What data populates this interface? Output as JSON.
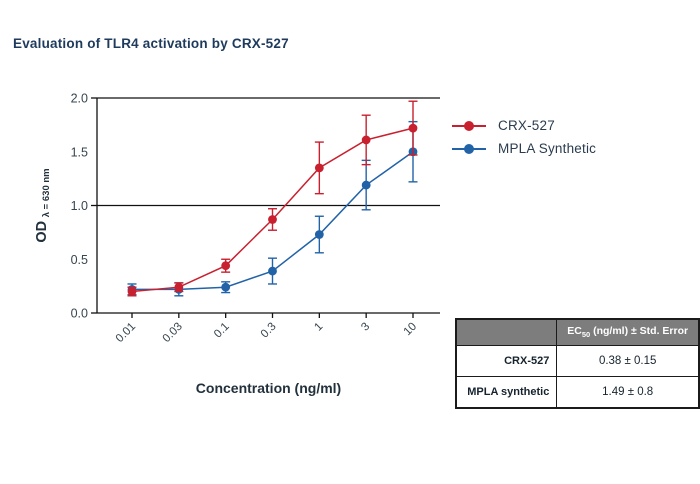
{
  "title": "Evaluation of TLR4 activation by CRX-527",
  "chart_data": {
    "type": "line",
    "title": "Evaluation of TLR4 activation by CRX-527",
    "x_categories": [
      "0.01",
      "0.03",
      "0.1",
      "0.3",
      "1",
      "3",
      "10"
    ],
    "xlabel": "Concentration (ng/ml)",
    "ylabel_main": "OD",
    "ylabel_sub": "λ = 630 nm",
    "ylim": [
      0,
      2
    ],
    "yticks": [
      "0.0",
      "0.5",
      "1.0",
      "1.5",
      "2.0"
    ],
    "ytick_values": [
      0,
      0.5,
      1,
      1.5,
      2
    ],
    "reference_lines_y": [
      1.0,
      2.0
    ],
    "grid": "horizontal lines at 1.0 and 2.0 only",
    "legend_position": "right-top",
    "x_scale": "log-spaced concentrations at equal category intervals",
    "error_bars": true,
    "series": [
      {
        "name": "CRX-527",
        "color": "#c9202f",
        "values": [
          0.2,
          0.24,
          0.44,
          0.87,
          1.35,
          1.61,
          1.72
        ],
        "errors": [
          0.04,
          0.04,
          0.06,
          0.1,
          0.24,
          0.23,
          0.25
        ]
      },
      {
        "name": "MPLA Synthetic",
        "color": "#2263a8",
        "values": [
          0.22,
          0.22,
          0.24,
          0.39,
          0.73,
          1.19,
          1.5
        ],
        "errors": [
          0.05,
          0.06,
          0.05,
          0.12,
          0.17,
          0.23,
          0.28
        ]
      }
    ]
  },
  "table": {
    "header": {
      "ec_prefix": "EC",
      "ec_sub": "50",
      "header_rest": " (ng/ml) ± Std. Error"
    },
    "rows": [
      {
        "name": "CRX-527",
        "value": "0.38 ± 0.15"
      },
      {
        "name": "MPLA synthetic",
        "value": "1.49 ± 0.8"
      }
    ]
  },
  "colors": {
    "title_text": "#1e3a5c",
    "axis_line": "#111111",
    "tick_text": "#36454f",
    "table_header_bg": "#7d7d7d",
    "series_red": "#c9202f",
    "series_blue": "#2263a8"
  }
}
